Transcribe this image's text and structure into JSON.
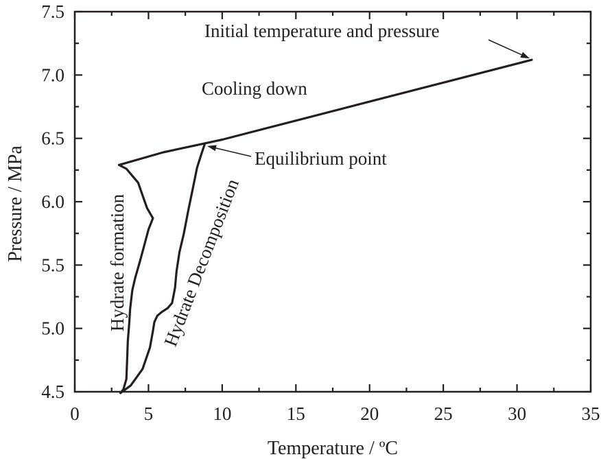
{
  "chart_data": {
    "type": "line",
    "title": "",
    "xlabel": "Temperature / ºC",
    "ylabel": "Pressure / MPa",
    "xlim": [
      0,
      35
    ],
    "ylim": [
      4.5,
      7.5
    ],
    "x_ticks": [
      0,
      5,
      10,
      15,
      20,
      25,
      30,
      35
    ],
    "x_tick_labels": [
      "0",
      "5",
      "10",
      "15",
      "20",
      "25",
      "30",
      "35"
    ],
    "y_ticks": [
      4.5,
      5.0,
      5.5,
      6.0,
      6.5,
      7.0,
      7.5
    ],
    "y_tick_labels": [
      "4.5",
      "5.0",
      "5.5",
      "6.0",
      "6.5",
      "7.0",
      "7.5"
    ],
    "grid": false,
    "series": [
      {
        "name": "Cooling down",
        "x": [
          31.0,
          25.0,
          20.0,
          15.0,
          10.0,
          8.8,
          6.0,
          3.0
        ],
        "y": [
          7.12,
          6.94,
          6.79,
          6.64,
          6.49,
          6.46,
          6.39,
          6.29
        ]
      },
      {
        "name": "Hydrate formation",
        "x": [
          3.0,
          3.5,
          4.3,
          4.6,
          4.9,
          5.2,
          5.3,
          5.0,
          4.7,
          4.4,
          4.1,
          3.9,
          3.75,
          3.7,
          3.6,
          3.55,
          3.5,
          3.3,
          3.1
        ],
        "y": [
          6.29,
          6.26,
          6.15,
          6.05,
          5.95,
          5.89,
          5.87,
          5.78,
          5.65,
          5.52,
          5.4,
          5.3,
          5.15,
          5.05,
          4.9,
          4.75,
          4.6,
          4.52,
          4.49
        ]
      },
      {
        "name": "Hydrate Decomposition",
        "x": [
          3.1,
          3.8,
          4.6,
          5.1,
          5.3,
          5.4,
          5.6,
          5.9,
          6.3,
          6.6,
          6.8,
          6.9,
          7.1,
          7.4,
          7.7,
          8.0,
          8.3,
          8.6,
          8.8
        ],
        "y": [
          4.49,
          4.55,
          4.68,
          4.85,
          4.98,
          5.05,
          5.1,
          5.13,
          5.16,
          5.2,
          5.32,
          5.45,
          5.6,
          5.75,
          5.93,
          6.1,
          6.27,
          6.38,
          6.45
        ]
      }
    ],
    "annotations": {
      "initial": "Initial temperature and pressure",
      "cooling": "Cooling down",
      "equilibrium": "Equilibrium point",
      "formation": "Hydrate formation",
      "decomposition": "Hydrate Decomposition"
    },
    "anchors": {
      "initial": [
        31.0,
        7.12
      ],
      "equilibrium": [
        8.8,
        6.45
      ]
    }
  }
}
